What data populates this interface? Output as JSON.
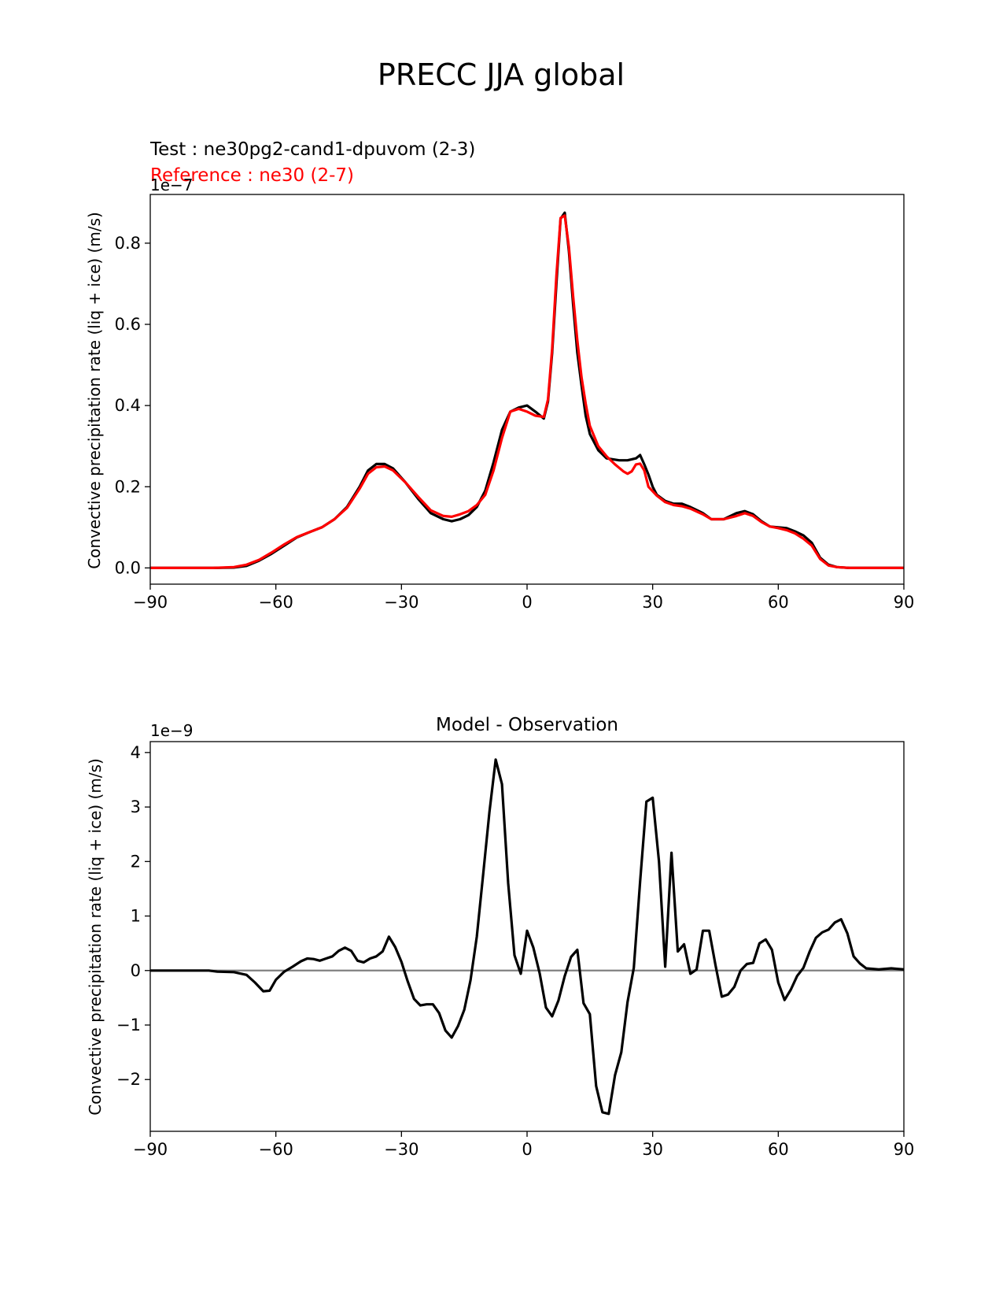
{
  "figure": {
    "title": "PRECC JJA global"
  },
  "chart_data": [
    {
      "type": "line",
      "test_label": "Test : ne30pg2-cand1-dpuvom (2-3)",
      "reference_label": "Reference : ne30 (2-7)",
      "ylabel": "Convective precipitation rate (liq + ice) (m/s)",
      "y_offset_text": "1e−7",
      "xlim": [
        -90,
        90
      ],
      "ylim": [
        -0.04,
        0.92
      ],
      "xticks": [
        -90,
        -60,
        -30,
        0,
        30,
        60,
        90
      ],
      "xtick_labels": [
        "−90",
        "−60",
        "−30",
        "0",
        "30",
        "60",
        "90"
      ],
      "yticks": [
        0,
        0.2,
        0.4,
        0.6,
        0.8
      ],
      "ytick_labels": [
        "0.0",
        "0.2",
        "0.4",
        "0.6",
        "0.8"
      ],
      "colors": {
        "test": "#000000",
        "reference": "#ff0000"
      },
      "series": [
        {
          "name": "test",
          "points": [
            [
              -90,
              0
            ],
            [
              -75,
              0
            ],
            [
              -70,
              0.001
            ],
            [
              -67,
              0.005
            ],
            [
              -64,
              0.018
            ],
            [
              -61,
              0.035
            ],
            [
              -58,
              0.055
            ],
            [
              -55,
              0.075
            ],
            [
              -52,
              0.088
            ],
            [
              -49,
              0.1
            ],
            [
              -46,
              0.12
            ],
            [
              -43,
              0.15
            ],
            [
              -40,
              0.2
            ],
            [
              -38,
              0.24
            ],
            [
              -36,
              0.256
            ],
            [
              -34,
              0.256
            ],
            [
              -32,
              0.245
            ],
            [
              -29,
              0.21
            ],
            [
              -26,
              0.17
            ],
            [
              -23,
              0.135
            ],
            [
              -20,
              0.12
            ],
            [
              -18,
              0.115
            ],
            [
              -16,
              0.12
            ],
            [
              -14,
              0.13
            ],
            [
              -12,
              0.15
            ],
            [
              -10,
              0.19
            ],
            [
              -8,
              0.26
            ],
            [
              -6,
              0.34
            ],
            [
              -4,
              0.385
            ],
            [
              -2,
              0.395
            ],
            [
              0,
              0.4
            ],
            [
              2,
              0.385
            ],
            [
              4,
              0.368
            ],
            [
              5,
              0.41
            ],
            [
              6,
              0.53
            ],
            [
              7,
              0.7
            ],
            [
              8,
              0.86
            ],
            [
              9,
              0.875
            ],
            [
              10,
              0.78
            ],
            [
              11,
              0.65
            ],
            [
              12,
              0.53
            ],
            [
              13,
              0.45
            ],
            [
              14,
              0.375
            ],
            [
              15,
              0.33
            ],
            [
              17,
              0.29
            ],
            [
              19,
              0.27
            ],
            [
              22,
              0.265
            ],
            [
              24,
              0.265
            ],
            [
              26,
              0.27
            ],
            [
              27,
              0.278
            ],
            [
              28,
              0.255
            ],
            [
              29,
              0.23
            ],
            [
              30,
              0.2
            ],
            [
              31,
              0.18
            ],
            [
              33,
              0.165
            ],
            [
              35,
              0.158
            ],
            [
              37,
              0.158
            ],
            [
              39,
              0.15
            ],
            [
              42,
              0.135
            ],
            [
              44,
              0.12
            ],
            [
              47,
              0.12
            ],
            [
              50,
              0.135
            ],
            [
              52,
              0.14
            ],
            [
              54,
              0.132
            ],
            [
              56,
              0.115
            ],
            [
              58,
              0.102
            ],
            [
              60,
              0.1
            ],
            [
              62,
              0.098
            ],
            [
              64,
              0.09
            ],
            [
              66,
              0.08
            ],
            [
              68,
              0.062
            ],
            [
              70,
              0.025
            ],
            [
              72,
              0.008
            ],
            [
              74,
              0.002
            ],
            [
              77,
              0
            ],
            [
              90,
              0
            ]
          ]
        },
        {
          "name": "reference",
          "points": [
            [
              -90,
              0
            ],
            [
              -75,
              0
            ],
            [
              -70,
              0.002
            ],
            [
              -67,
              0.008
            ],
            [
              -64,
              0.02
            ],
            [
              -61,
              0.038
            ],
            [
              -58,
              0.058
            ],
            [
              -55,
              0.076
            ],
            [
              -52,
              0.088
            ],
            [
              -49,
              0.1
            ],
            [
              -46,
              0.12
            ],
            [
              -43,
              0.148
            ],
            [
              -40,
              0.195
            ],
            [
              -38,
              0.232
            ],
            [
              -36,
              0.248
            ],
            [
              -34,
              0.25
            ],
            [
              -32,
              0.24
            ],
            [
              -29,
              0.21
            ],
            [
              -26,
              0.175
            ],
            [
              -23,
              0.142
            ],
            [
              -20,
              0.128
            ],
            [
              -18,
              0.126
            ],
            [
              -16,
              0.132
            ],
            [
              -14,
              0.14
            ],
            [
              -12,
              0.155
            ],
            [
              -10,
              0.18
            ],
            [
              -8,
              0.24
            ],
            [
              -6,
              0.32
            ],
            [
              -4,
              0.385
            ],
            [
              -2,
              0.392
            ],
            [
              0,
              0.385
            ],
            [
              2,
              0.375
            ],
            [
              4,
              0.372
            ],
            [
              5,
              0.415
            ],
            [
              6,
              0.54
            ],
            [
              7,
              0.72
            ],
            [
              8,
              0.862
            ],
            [
              9,
              0.868
            ],
            [
              10,
              0.79
            ],
            [
              11,
              0.67
            ],
            [
              12,
              0.56
            ],
            [
              13,
              0.47
            ],
            [
              14,
              0.405
            ],
            [
              15,
              0.35
            ],
            [
              17,
              0.3
            ],
            [
              19,
              0.275
            ],
            [
              21,
              0.255
            ],
            [
              23,
              0.238
            ],
            [
              24,
              0.232
            ],
            [
              25,
              0.238
            ],
            [
              26,
              0.255
            ],
            [
              27,
              0.257
            ],
            [
              28,
              0.24
            ],
            [
              29,
              0.2
            ],
            [
              31,
              0.178
            ],
            [
              33,
              0.162
            ],
            [
              35,
              0.155
            ],
            [
              37,
              0.152
            ],
            [
              39,
              0.146
            ],
            [
              42,
              0.132
            ],
            [
              44,
              0.12
            ],
            [
              47,
              0.12
            ],
            [
              50,
              0.128
            ],
            [
              52,
              0.135
            ],
            [
              54,
              0.128
            ],
            [
              56,
              0.113
            ],
            [
              58,
              0.102
            ],
            [
              60,
              0.098
            ],
            [
              62,
              0.093
            ],
            [
              64,
              0.085
            ],
            [
              66,
              0.072
            ],
            [
              68,
              0.055
            ],
            [
              70,
              0.022
            ],
            [
              72,
              0.006
            ],
            [
              74,
              0.002
            ],
            [
              77,
              0
            ],
            [
              90,
              0
            ]
          ]
        }
      ]
    },
    {
      "type": "line",
      "title": "Model - Observation",
      "ylabel": "Convective precipitation rate (liq + ice) (m/s)",
      "y_offset_text": "1e−9",
      "xlim": [
        -90,
        90
      ],
      "ylim": [
        -2.95,
        4.2
      ],
      "xticks": [
        -90,
        -60,
        -30,
        0,
        30,
        60,
        90
      ],
      "xtick_labels": [
        "−90",
        "−60",
        "−30",
        "0",
        "30",
        "60",
        "90"
      ],
      "yticks": [
        -2,
        -1,
        0,
        1,
        2,
        3,
        4
      ],
      "ytick_labels": [
        "−2",
        "−1",
        "0",
        "1",
        "2",
        "3",
        "4"
      ],
      "zero_line": 0,
      "colors": {
        "diff": "#000000",
        "zero": "#808080"
      },
      "series": [
        {
          "name": "model minus observation",
          "points": [
            [
              -90,
              0
            ],
            [
              -76,
              0
            ],
            [
              -74,
              -0.02
            ],
            [
              -70,
              -0.03
            ],
            [
              -67,
              -0.08
            ],
            [
              -65,
              -0.22
            ],
            [
              -63,
              -0.38
            ],
            [
              -61.5,
              -0.37
            ],
            [
              -60,
              -0.17
            ],
            [
              -58,
              -0.02
            ],
            [
              -56,
              0.07
            ],
            [
              -54,
              0.17
            ],
            [
              -52.5,
              0.22
            ],
            [
              -51,
              0.21
            ],
            [
              -49.5,
              0.18
            ],
            [
              -48,
              0.22
            ],
            [
              -46.5,
              0.26
            ],
            [
              -45,
              0.36
            ],
            [
              -43.5,
              0.42
            ],
            [
              -42,
              0.36
            ],
            [
              -40.5,
              0.18
            ],
            [
              -39,
              0.15
            ],
            [
              -37.5,
              0.22
            ],
            [
              -36,
              0.26
            ],
            [
              -34.5,
              0.35
            ],
            [
              -33,
              0.62
            ],
            [
              -31.5,
              0.43
            ],
            [
              -30,
              0.16
            ],
            [
              -28.5,
              -0.2
            ],
            [
              -27,
              -0.52
            ],
            [
              -25.5,
              -0.64
            ],
            [
              -24,
              -0.62
            ],
            [
              -22.5,
              -0.62
            ],
            [
              -21,
              -0.78
            ],
            [
              -19.5,
              -1.1
            ],
            [
              -18,
              -1.23
            ],
            [
              -16.5,
              -1.02
            ],
            [
              -15,
              -0.72
            ],
            [
              -13.5,
              -0.18
            ],
            [
              -12,
              0.62
            ],
            [
              -10.5,
              1.75
            ],
            [
              -9,
              2.9
            ],
            [
              -7.5,
              3.87
            ],
            [
              -6,
              3.42
            ],
            [
              -4.5,
              1.6
            ],
            [
              -3,
              0.28
            ],
            [
              -1.5,
              -0.06
            ],
            [
              0,
              0.73
            ],
            [
              1.5,
              0.42
            ],
            [
              3,
              -0.05
            ],
            [
              4.5,
              -0.68
            ],
            [
              6,
              -0.84
            ],
            [
              7.5,
              -0.55
            ],
            [
              9,
              -0.1
            ],
            [
              10.5,
              0.25
            ],
            [
              12,
              0.38
            ],
            [
              13.5,
              -0.6
            ],
            [
              15,
              -0.8
            ],
            [
              16.5,
              -2.12
            ],
            [
              18,
              -2.6
            ],
            [
              19.5,
              -2.63
            ],
            [
              21,
              -1.92
            ],
            [
              22.5,
              -1.5
            ],
            [
              24,
              -0.58
            ],
            [
              25.5,
              0.05
            ],
            [
              27,
              1.63
            ],
            [
              28.5,
              3.1
            ],
            [
              30,
              3.17
            ],
            [
              31.5,
              2.0
            ],
            [
              33,
              0.07
            ],
            [
              34.5,
              2.16
            ],
            [
              36,
              0.35
            ],
            [
              37.5,
              0.48
            ],
            [
              39,
              -0.06
            ],
            [
              40.5,
              0.02
            ],
            [
              42,
              0.73
            ],
            [
              43.5,
              0.73
            ],
            [
              45,
              0.1
            ],
            [
              46.5,
              -0.48
            ],
            [
              48,
              -0.44
            ],
            [
              49.5,
              -0.3
            ],
            [
              51,
              0.0
            ],
            [
              52.5,
              0.12
            ],
            [
              54,
              0.14
            ],
            [
              55.5,
              0.5
            ],
            [
              57,
              0.57
            ],
            [
              58.5,
              0.38
            ],
            [
              60,
              -0.22
            ],
            [
              61.5,
              -0.54
            ],
            [
              63,
              -0.35
            ],
            [
              64.5,
              -0.1
            ],
            [
              66,
              0.05
            ],
            [
              67.5,
              0.35
            ],
            [
              69,
              0.6
            ],
            [
              70.5,
              0.7
            ],
            [
              72,
              0.75
            ],
            [
              73.5,
              0.88
            ],
            [
              75,
              0.94
            ],
            [
              76.5,
              0.68
            ],
            [
              78,
              0.26
            ],
            [
              79.5,
              0.13
            ],
            [
              81,
              0.04
            ],
            [
              84,
              0.02
            ],
            [
              87,
              0.04
            ],
            [
              90,
              0.02
            ]
          ]
        }
      ]
    }
  ]
}
